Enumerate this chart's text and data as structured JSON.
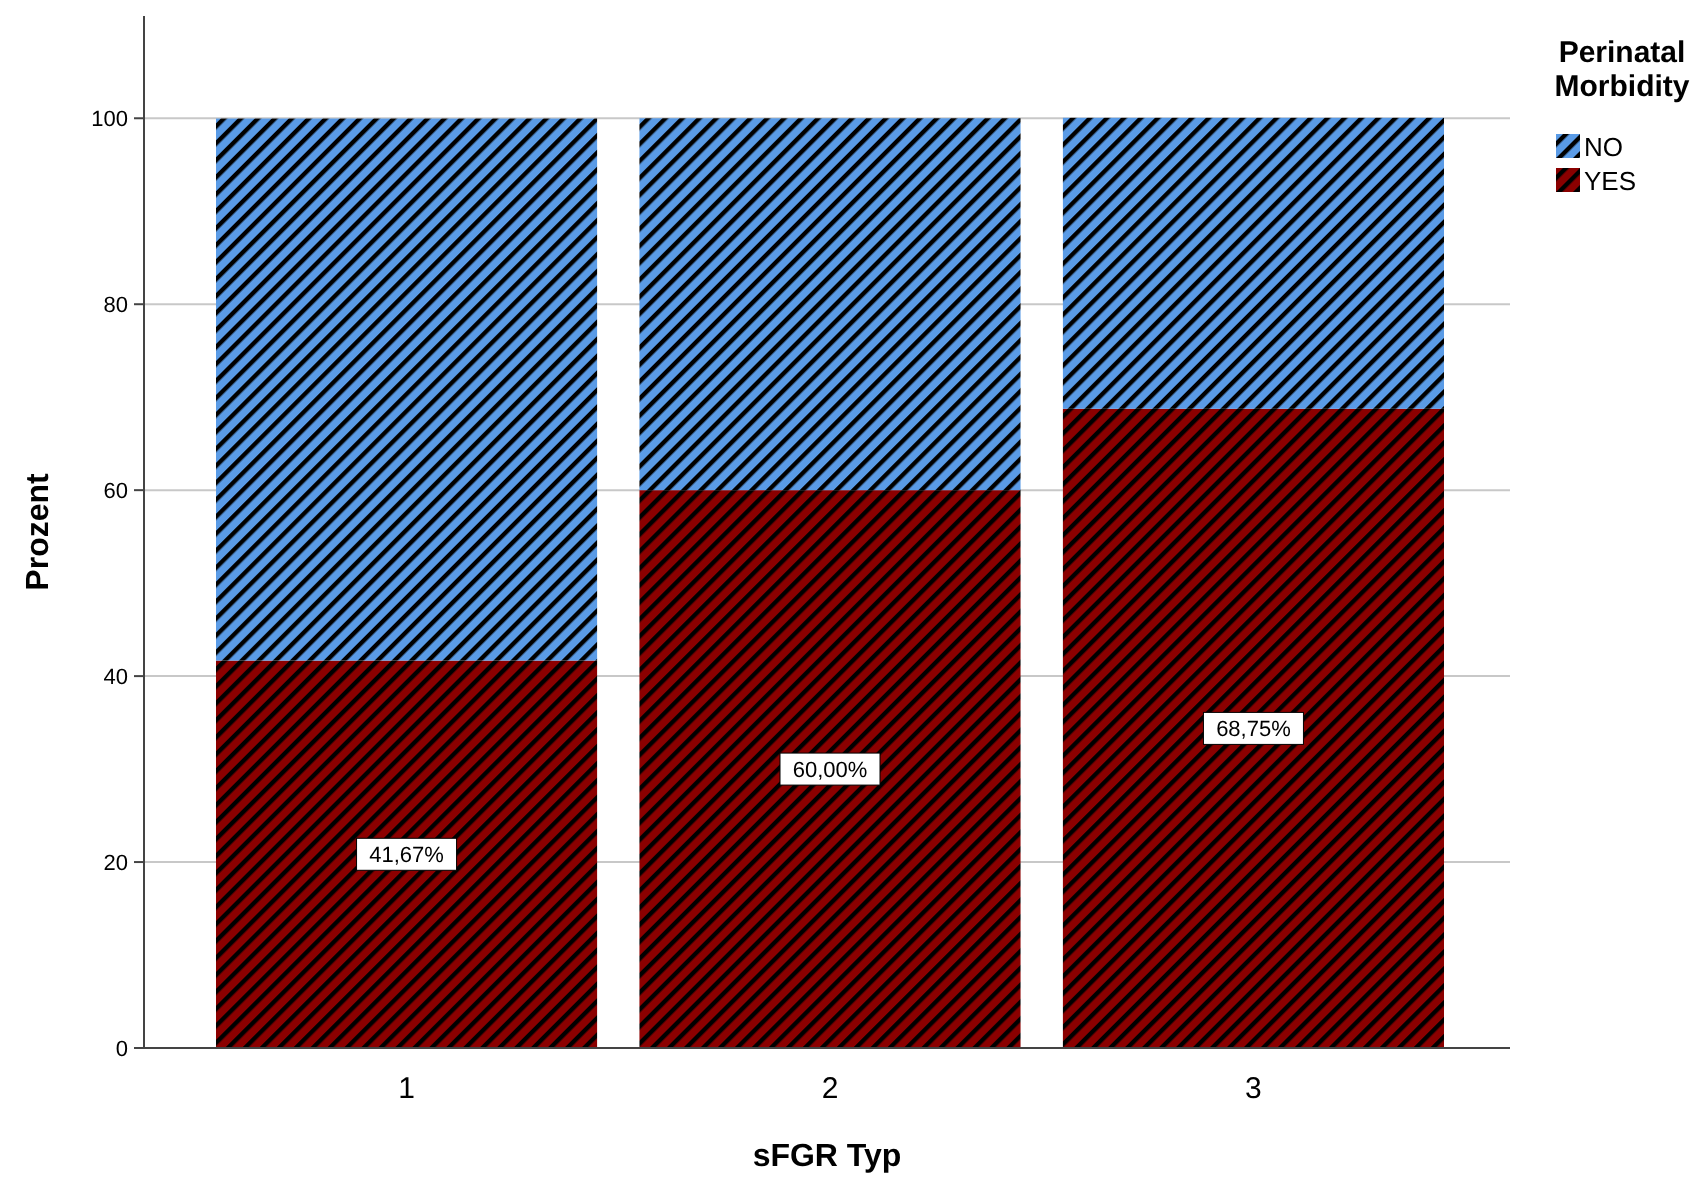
{
  "chart_data": {
    "type": "bar",
    "stacked": true,
    "xlabel": "sFGR Typ",
    "ylabel": "Prozent",
    "legend_title": "Perinatal Morbidity",
    "legend": "top right",
    "grid": "y",
    "categories": [
      "1",
      "2",
      "3"
    ],
    "ylim": [
      0,
      111
    ],
    "yticks": [
      0,
      20,
      40,
      60,
      80,
      100
    ],
    "series": [
      {
        "name": "YES",
        "color": "#8b0000",
        "values": [
          41.67,
          60.0,
          68.75
        ],
        "value_labels": [
          "41,67%",
          "60,00%",
          "68,75%"
        ]
      },
      {
        "name": "NO",
        "color": "#5a9be6",
        "values": [
          58.3,
          40.0,
          31.3
        ]
      }
    ]
  }
}
